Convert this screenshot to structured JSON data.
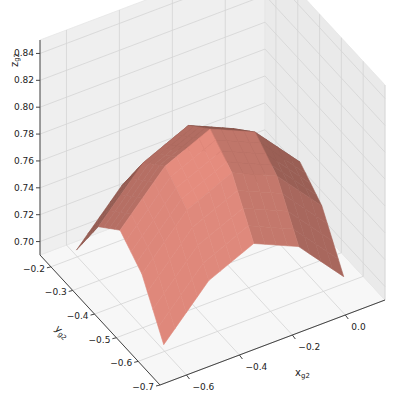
{
  "chart_data": {
    "type": "surface",
    "xlabel": "xg2",
    "ylabel": "yg2",
    "zlabel": "zg2",
    "x": [
      -0.62,
      -0.45,
      -0.28,
      -0.11,
      0.06
    ],
    "y": [
      -0.22,
      -0.32,
      -0.42,
      -0.52,
      -0.62
    ],
    "z": [
      [
        0.7,
        0.735,
        0.75,
        0.735,
        0.7
      ],
      [
        0.735,
        0.77,
        0.785,
        0.77,
        0.735
      ],
      [
        0.75,
        0.785,
        0.8,
        0.785,
        0.75
      ],
      [
        0.735,
        0.77,
        0.785,
        0.77,
        0.735
      ],
      [
        0.7,
        0.735,
        0.75,
        0.735,
        0.7
      ]
    ],
    "color": "#c77a6e",
    "xlim": [
      -0.7,
      0.15
    ],
    "ylim": [
      -0.7,
      -0.15
    ],
    "zlim": [
      0.69,
      0.85
    ],
    "xticks": [
      {
        "value": -0.6,
        "label": "−0.6"
      },
      {
        "value": -0.4,
        "label": "−0.4"
      },
      {
        "value": -0.2,
        "label": "−0.2"
      },
      {
        "value": 0,
        "label": "0.0"
      }
    ],
    "yticks": [
      {
        "value": -0.2,
        "label": "−0.2"
      },
      {
        "value": -0.3,
        "label": "−0.3"
      },
      {
        "value": -0.4,
        "label": "−0.4"
      },
      {
        "value": -0.5,
        "label": "−0.5"
      },
      {
        "value": -0.6,
        "label": "−0.6"
      },
      {
        "value": -0.7,
        "label": "−0.7"
      }
    ],
    "zticks": [
      {
        "value": 0.7,
        "label": "0.70"
      },
      {
        "value": 0.72,
        "label": "0.72"
      },
      {
        "value": 0.74,
        "label": "0.74"
      },
      {
        "value": 0.76,
        "label": "0.76"
      },
      {
        "value": 0.78,
        "label": "0.78"
      },
      {
        "value": 0.8,
        "label": "0.80"
      },
      {
        "value": 0.82,
        "label": "0.82"
      },
      {
        "value": 0.84,
        "label": "0.84"
      }
    ],
    "grid": true
  }
}
